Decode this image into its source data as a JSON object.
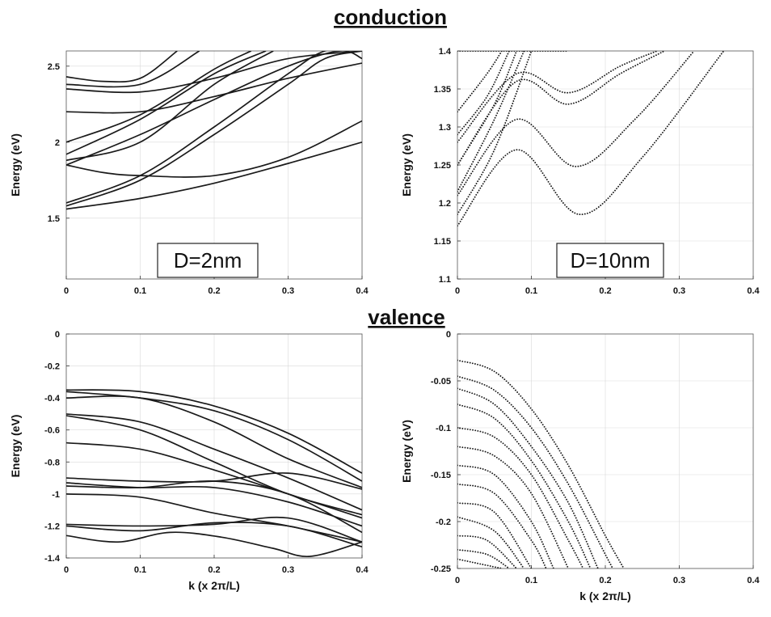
{
  "sections": {
    "top": "conduction",
    "bottom": "valence"
  },
  "colors": {
    "ink": "#1a1a1a",
    "grid": "#d9d9d9"
  },
  "chart_data": [
    {
      "id": "conduction-2nm",
      "type": "line",
      "label": "D=2nm",
      "xlabel": "",
      "ylabel": "Energy  (eV)",
      "xlim": [
        0,
        0.4
      ],
      "ylim": [
        1.1,
        2.6
      ],
      "xticks": [
        "0",
        "0.1",
        "0.2",
        "0.3",
        "0.4"
      ],
      "yticks": [
        "1.5",
        "2",
        "2.5"
      ],
      "ytickvals": [
        1.5,
        2,
        2.5
      ],
      "series": [
        {
          "x": [
            0,
            0.1,
            0.2,
            0.3,
            0.4
          ],
          "y": [
            1.56,
            1.63,
            1.73,
            1.86,
            2.0
          ]
        },
        {
          "x": [
            0,
            0.1,
            0.2,
            0.3,
            0.35,
            0.4
          ],
          "y": [
            1.58,
            1.75,
            2.05,
            2.38,
            2.55,
            2.6
          ]
        },
        {
          "x": [
            0,
            0.1,
            0.2,
            0.3,
            0.35,
            0.4
          ],
          "y": [
            1.6,
            1.78,
            2.1,
            2.45,
            2.6,
            2.6
          ]
        },
        {
          "x": [
            0,
            0.1,
            0.2,
            0.3,
            0.37,
            0.4
          ],
          "y": [
            1.85,
            2.05,
            2.28,
            2.5,
            2.6,
            2.55
          ]
        },
        {
          "x": [
            0,
            0.05,
            0.1,
            0.2,
            0.3,
            0.4
          ],
          "y": [
            1.85,
            1.8,
            1.78,
            1.78,
            1.9,
            2.14
          ]
        },
        {
          "x": [
            0,
            0.1,
            0.2,
            0.28
          ],
          "y": [
            1.88,
            2.0,
            2.38,
            2.6
          ]
        },
        {
          "x": [
            0,
            0.1,
            0.2,
            0.27
          ],
          "y": [
            1.92,
            2.15,
            2.45,
            2.6
          ]
        },
        {
          "x": [
            0,
            0.1,
            0.2,
            0.25
          ],
          "y": [
            2.0,
            2.18,
            2.48,
            2.6
          ]
        },
        {
          "x": [
            0,
            0.1,
            0.2,
            0.3,
            0.4
          ],
          "y": [
            2.2,
            2.2,
            2.3,
            2.42,
            2.52
          ]
        },
        {
          "x": [
            0,
            0.1,
            0.2,
            0.3,
            0.4
          ],
          "y": [
            2.35,
            2.33,
            2.42,
            2.55,
            2.6
          ]
        },
        {
          "x": [
            0,
            0.1,
            0.18
          ],
          "y": [
            2.38,
            2.38,
            2.6
          ]
        },
        {
          "x": [
            0,
            0.05,
            0.1,
            0.15
          ],
          "y": [
            2.43,
            2.4,
            2.42,
            2.6
          ]
        }
      ]
    },
    {
      "id": "conduction-10nm",
      "type": "scatter",
      "label": "D=10nm",
      "xlabel": "",
      "ylabel": "Energy  (eV)",
      "xlim": [
        0,
        0.4
      ],
      "ylim": [
        1.1,
        1.4
      ],
      "xticks": [
        "0",
        "0.1",
        "0.2",
        "0.3",
        "0.4"
      ],
      "yticks": [
        "1.1",
        "1.15",
        "1.2",
        "1.25",
        "1.3",
        "1.35",
        "1.4"
      ],
      "ytickvals": [
        1.1,
        1.15,
        1.2,
        1.25,
        1.3,
        1.35,
        1.4
      ],
      "series": [
        {
          "x": [
            0,
            0.08,
            0.165,
            0.25,
            0.36
          ],
          "y": [
            1.17,
            1.27,
            1.185,
            1.26,
            1.4
          ]
        },
        {
          "x": [
            0,
            0.08,
            0.16,
            0.24,
            0.32
          ],
          "y": [
            1.21,
            1.31,
            1.248,
            1.31,
            1.4
          ]
        },
        {
          "x": [
            0,
            0.08,
            0.15,
            0.22,
            0.28
          ],
          "y": [
            1.25,
            1.36,
            1.33,
            1.37,
            1.4
          ]
        },
        {
          "x": [
            0,
            0.08,
            0.15,
            0.22,
            0.27
          ],
          "y": [
            1.28,
            1.37,
            1.345,
            1.38,
            1.4
          ]
        },
        {
          "x": [
            0,
            0.05,
            0.1
          ],
          "y": [
            1.185,
            1.27,
            1.4
          ]
        },
        {
          "x": [
            0,
            0.05,
            0.09
          ],
          "y": [
            1.215,
            1.31,
            1.4
          ]
        },
        {
          "x": [
            0,
            0.05,
            0.08
          ],
          "y": [
            1.25,
            1.33,
            1.4
          ]
        },
        {
          "x": [
            0,
            0.04,
            0.07
          ],
          "y": [
            1.29,
            1.34,
            1.4
          ]
        },
        {
          "x": [
            0,
            0.04,
            0.06
          ],
          "y": [
            1.32,
            1.37,
            1.4
          ]
        },
        {
          "x": [
            0,
            0.1,
            0.15
          ],
          "y": [
            1.4,
            1.4,
            1.4
          ]
        }
      ]
    },
    {
      "id": "valence-2nm",
      "type": "line",
      "label": "",
      "xlabel": "k (x 2π/L)",
      "ylabel": "Energy  (eV)",
      "xlim": [
        0,
        0.4
      ],
      "ylim": [
        -1.4,
        0
      ],
      "xticks": [
        "0",
        "0.1",
        "0.2",
        "0.3",
        "0.4"
      ],
      "yticks": [
        "0",
        "-0.2",
        "-0.4",
        "-0.6",
        "-0.8",
        "-1",
        "-1.2",
        "-1.4"
      ],
      "ytickvals": [
        0,
        -0.2,
        -0.4,
        -0.6,
        -0.8,
        -1,
        -1.2,
        -1.4
      ],
      "series": [
        {
          "x": [
            0,
            0.1,
            0.2,
            0.3,
            0.4
          ],
          "y": [
            -0.35,
            -0.36,
            -0.45,
            -0.62,
            -0.87
          ]
        },
        {
          "x": [
            0,
            0.1,
            0.2,
            0.3,
            0.4
          ],
          "y": [
            -0.36,
            -0.4,
            -0.48,
            -0.66,
            -0.92
          ]
        },
        {
          "x": [
            0,
            0.1,
            0.2,
            0.3,
            0.4
          ],
          "y": [
            -0.4,
            -0.4,
            -0.55,
            -0.78,
            -0.96
          ]
        },
        {
          "x": [
            0,
            0.1,
            0.2,
            0.3,
            0.4
          ],
          "y": [
            -0.5,
            -0.55,
            -0.72,
            -0.9,
            -1.1
          ]
        },
        {
          "x": [
            0,
            0.1,
            0.2,
            0.3,
            0.4
          ],
          "y": [
            -0.51,
            -0.6,
            -0.8,
            -1.0,
            -1.13
          ]
        },
        {
          "x": [
            0,
            0.1,
            0.2,
            0.3,
            0.4
          ],
          "y": [
            -0.68,
            -0.72,
            -0.85,
            -1.0,
            -1.15
          ]
        },
        {
          "x": [
            0,
            0.1,
            0.2,
            0.3,
            0.4
          ],
          "y": [
            -0.9,
            -0.92,
            -0.92,
            -0.87,
            -0.97
          ]
        },
        {
          "x": [
            0,
            0.1,
            0.2,
            0.3,
            0.4
          ],
          "y": [
            -0.93,
            -0.96,
            -0.96,
            -1.05,
            -1.2
          ]
        },
        {
          "x": [
            0,
            0.1,
            0.2,
            0.3,
            0.4
          ],
          "y": [
            -0.95,
            -0.96,
            -0.92,
            -1.0,
            -1.24
          ]
        },
        {
          "x": [
            0,
            0.1,
            0.2,
            0.3,
            0.4
          ],
          "y": [
            -1.0,
            -1.02,
            -1.12,
            -1.2,
            -1.3
          ]
        },
        {
          "x": [
            0,
            0.1,
            0.2,
            0.3,
            0.4
          ],
          "y": [
            -1.19,
            -1.2,
            -1.19,
            -1.15,
            -1.3
          ]
        },
        {
          "x": [
            0,
            0.1,
            0.2,
            0.3,
            0.4
          ],
          "y": [
            -1.2,
            -1.23,
            -1.18,
            -1.2,
            -1.33
          ]
        },
        {
          "x": [
            0,
            0.07,
            0.14,
            0.21,
            0.28,
            0.33,
            0.4
          ],
          "y": [
            -1.26,
            -1.3,
            -1.24,
            -1.27,
            -1.34,
            -1.39,
            -1.3
          ]
        }
      ]
    },
    {
      "id": "valence-10nm",
      "type": "scatter",
      "label": "",
      "xlabel": "k (x 2π/L)",
      "ylabel": "Energy  (eV)",
      "xlim": [
        0,
        0.4
      ],
      "ylim": [
        -0.25,
        0
      ],
      "xticks": [
        "0",
        "0.1",
        "0.2",
        "0.3",
        "0.4"
      ],
      "yticks": [
        "0",
        "-0.05",
        "-0.1",
        "-0.15",
        "-0.2",
        "-0.25"
      ],
      "ytickvals": [
        0,
        -0.05,
        -0.1,
        -0.15,
        -0.2,
        -0.25
      ],
      "series": [
        {
          "x": [
            0,
            0.05,
            0.1,
            0.15,
            0.2,
            0.225
          ],
          "y": [
            -0.028,
            -0.04,
            -0.08,
            -0.14,
            -0.215,
            -0.25
          ]
        },
        {
          "x": [
            0,
            0.05,
            0.1,
            0.15,
            0.2,
            0.21
          ],
          "y": [
            -0.045,
            -0.06,
            -0.1,
            -0.16,
            -0.235,
            -0.25
          ]
        },
        {
          "x": [
            0,
            0.05,
            0.1,
            0.15,
            0.19
          ],
          "y": [
            -0.058,
            -0.075,
            -0.12,
            -0.18,
            -0.25
          ]
        },
        {
          "x": [
            0,
            0.05,
            0.1,
            0.15,
            0.18
          ],
          "y": [
            -0.075,
            -0.09,
            -0.135,
            -0.2,
            -0.25
          ]
        },
        {
          "x": [
            0,
            0.05,
            0.1,
            0.15,
            0.17
          ],
          "y": [
            -0.1,
            -0.11,
            -0.15,
            -0.22,
            -0.25
          ]
        },
        {
          "x": [
            0,
            0.05,
            0.1,
            0.15
          ],
          "y": [
            -0.12,
            -0.13,
            -0.17,
            -0.25
          ]
        },
        {
          "x": [
            0,
            0.05,
            0.1,
            0.13
          ],
          "y": [
            -0.14,
            -0.15,
            -0.2,
            -0.25
          ]
        },
        {
          "x": [
            0,
            0.05,
            0.1,
            0.12
          ],
          "y": [
            -0.16,
            -0.17,
            -0.22,
            -0.25
          ]
        },
        {
          "x": [
            0,
            0.05,
            0.1
          ],
          "y": [
            -0.18,
            -0.19,
            -0.25
          ]
        },
        {
          "x": [
            0,
            0.05,
            0.09
          ],
          "y": [
            -0.195,
            -0.21,
            -0.25
          ]
        },
        {
          "x": [
            0,
            0.04,
            0.08
          ],
          "y": [
            -0.215,
            -0.22,
            -0.25
          ]
        },
        {
          "x": [
            0,
            0.04,
            0.07
          ],
          "y": [
            -0.23,
            -0.235,
            -0.25
          ]
        },
        {
          "x": [
            0,
            0.03,
            0.06
          ],
          "y": [
            -0.24,
            -0.245,
            -0.25
          ]
        }
      ]
    }
  ]
}
